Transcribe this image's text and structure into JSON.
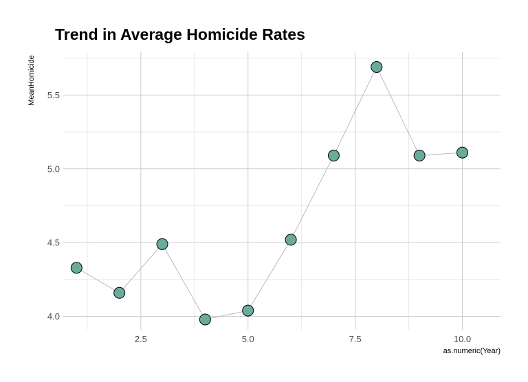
{
  "chart_data": {
    "type": "line",
    "title": "Trend in Average Homicide Rates",
    "xlabel": "as.numeric(Year)",
    "ylabel": "MeanHomicide",
    "x": [
      1,
      2,
      3,
      4,
      5,
      6,
      7,
      8,
      9,
      10
    ],
    "y": [
      4.33,
      4.16,
      4.49,
      3.98,
      4.04,
      4.52,
      5.09,
      5.69,
      5.09,
      5.11
    ],
    "xlim": [
      0.69,
      10.89
    ],
    "ylim": [
      3.91,
      5.79
    ],
    "x_ticks": [
      "2.5",
      "5.0",
      "7.5",
      "10.0"
    ],
    "y_ticks": [
      "4.0",
      "4.5",
      "5.0",
      "5.5"
    ],
    "grid": true,
    "legend": "none",
    "colors": {
      "point_fill": "#6aab9c",
      "point_stroke": "#000000",
      "line": "#b3b3b3",
      "grid_major": "#cccccc",
      "grid_minor": "#e3e3e3"
    }
  }
}
